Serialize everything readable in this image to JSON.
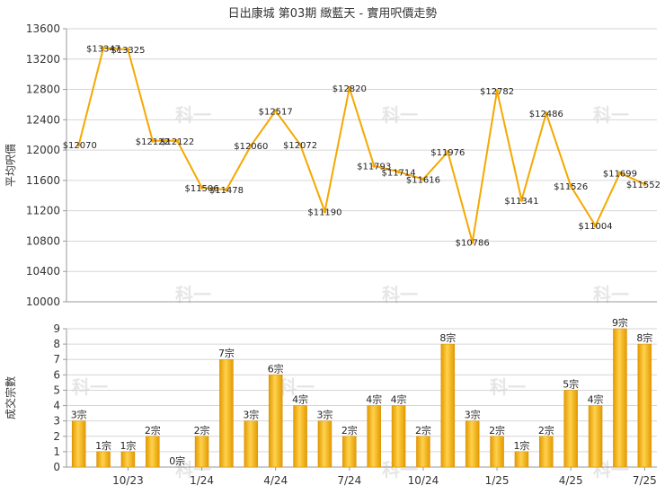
{
  "title": "日出康城 第03期 緻藍天 - 實用呎價走勢",
  "watermark": "科一",
  "colors": {
    "line": "#f5a800",
    "bar": "#f0a800",
    "bar_light": "#ffe27a",
    "bar_dark": "#d98e00",
    "grid": "#d6d6d6",
    "axis": "#999999"
  },
  "chart_data": [
    {
      "type": "line",
      "ylabel": "平均呎價",
      "ylim": [
        10000,
        13600
      ],
      "yticks": [
        10000,
        10400,
        10800,
        11200,
        11600,
        12000,
        12400,
        12800,
        13200,
        13600
      ],
      "values": [
        12070,
        13347,
        13325,
        12122,
        12122,
        11506,
        11478,
        12060,
        12517,
        12072,
        11190,
        12820,
        11793,
        11714,
        11616,
        11976,
        10786,
        12782,
        11341,
        12486,
        11526,
        11004,
        11699,
        11552
      ],
      "labels": [
        "$12070",
        "$13347",
        "$13325",
        "$12122",
        "$12122",
        "$11506",
        "$11478",
        "$12060",
        "$12517",
        "$12072",
        "$11190",
        "$12820",
        "$11793",
        "$11714",
        "$11616",
        "$11976",
        "$10786",
        "$12782",
        "$11341",
        "$12486",
        "$11526",
        "$11004",
        "$11699",
        "$11552"
      ]
    },
    {
      "type": "bar",
      "ylabel": "成交宗數",
      "ylim": [
        0,
        9
      ],
      "yticks": [
        0,
        1,
        2,
        3,
        4,
        5,
        6,
        7,
        8,
        9
      ],
      "values": [
        3,
        1,
        1,
        2,
        0,
        2,
        7,
        3,
        6,
        4,
        3,
        2,
        4,
        4,
        2,
        8,
        3,
        2,
        1,
        2,
        5,
        4,
        9,
        8
      ],
      "labels": [
        "3宗",
        "1宗",
        "1宗",
        "2宗",
        "0宗",
        "2宗",
        "7宗",
        "3宗",
        "6宗",
        "4宗",
        "3宗",
        "2宗",
        "4宗",
        "4宗",
        "2宗",
        "8宗",
        "3宗",
        "2宗",
        "1宗",
        "2宗",
        "5宗",
        "4宗",
        "9宗",
        "8宗"
      ],
      "xticks": [
        {
          "index": 2,
          "label": "10/23"
        },
        {
          "index": 5,
          "label": "1/24"
        },
        {
          "index": 8,
          "label": "4/24"
        },
        {
          "index": 11,
          "label": "7/24"
        },
        {
          "index": 14,
          "label": "10/24"
        },
        {
          "index": 17,
          "label": "1/25"
        },
        {
          "index": 20,
          "label": "4/25"
        },
        {
          "index": 23,
          "label": "7/25"
        }
      ]
    }
  ]
}
